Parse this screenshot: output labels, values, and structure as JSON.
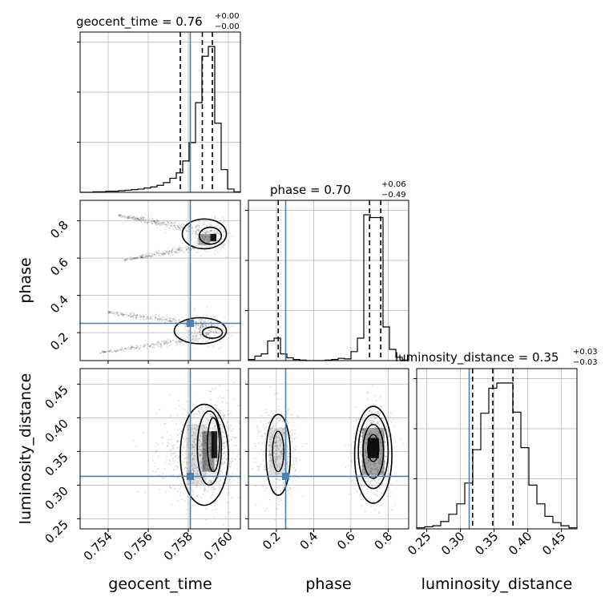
{
  "chart_data": {
    "type": "corner",
    "truth_color": "#4682b4",
    "parameters": [
      "geocent_time",
      "phase",
      "luminosity_distance"
    ],
    "truths": {
      "geocent_time": 0.7581,
      "phase": 0.25,
      "luminosity_distance": 0.313
    },
    "ranges": {
      "geocent_time": [
        0.7526,
        0.7606
      ],
      "phase": [
        0.05,
        0.91
      ],
      "luminosity_distance": [
        0.235,
        0.473
      ]
    },
    "ticks": {
      "geocent_time": [
        "0.754",
        "0.756",
        "0.758",
        "0.760"
      ],
      "phase": [
        "0.2",
        "0.4",
        "0.6",
        "0.8"
      ],
      "luminosity_distance": [
        "0.25",
        "0.30",
        "0.35",
        "0.40",
        "0.45"
      ]
    },
    "axis_labels": {
      "geocent_time": "geocent_time",
      "phase": "phase",
      "luminosity_distance": "luminosity_distance"
    },
    "titles": [
      {
        "param": "geocent_time",
        "main": "geocent_time = 0.76",
        "sup": "+0.00",
        "sub": "−0.00"
      },
      {
        "param": "phase",
        "main": "phase = 0.70",
        "sup": "+0.06",
        "sub": "−0.49"
      },
      {
        "param": "luminosity_distance",
        "main": "luminosity_distance = 0.35",
        "sup": "+0.03",
        "sub": "−0.03"
      }
    ],
    "marginals": {
      "geocent_time": {
        "bins": [
          0.7526,
          0.7606
        ],
        "counts": [
          0,
          0,
          1,
          1,
          2,
          2,
          3,
          4,
          5,
          6,
          8,
          10,
          13,
          18,
          26,
          36,
          58,
          92,
          166,
          252,
          270,
          128,
          42,
          6,
          1
        ],
        "quantiles": [
          0.7576,
          0.7587,
          0.7592
        ]
      },
      "phase": {
        "bins": [
          0.05,
          0.91
        ],
        "counts": [
          2,
          8,
          12,
          35,
          40,
          12,
          5,
          2,
          1,
          0,
          0,
          0,
          1,
          2,
          4,
          3,
          16,
          40,
          260,
          255,
          255,
          60,
          20,
          6,
          1
        ],
        "quantiles": [
          0.21,
          0.7,
          0.76
        ]
      },
      "luminosity_distance": {
        "bins": [
          0.235,
          0.473
        ],
        "counts": [
          1,
          2,
          3,
          7,
          14,
          24,
          44,
          76,
          111,
          135,
          140,
          140,
          112,
          78,
          42,
          24,
          12,
          6,
          3,
          1
        ],
        "quantiles": [
          0.318,
          0.348,
          0.378
        ]
      }
    }
  }
}
